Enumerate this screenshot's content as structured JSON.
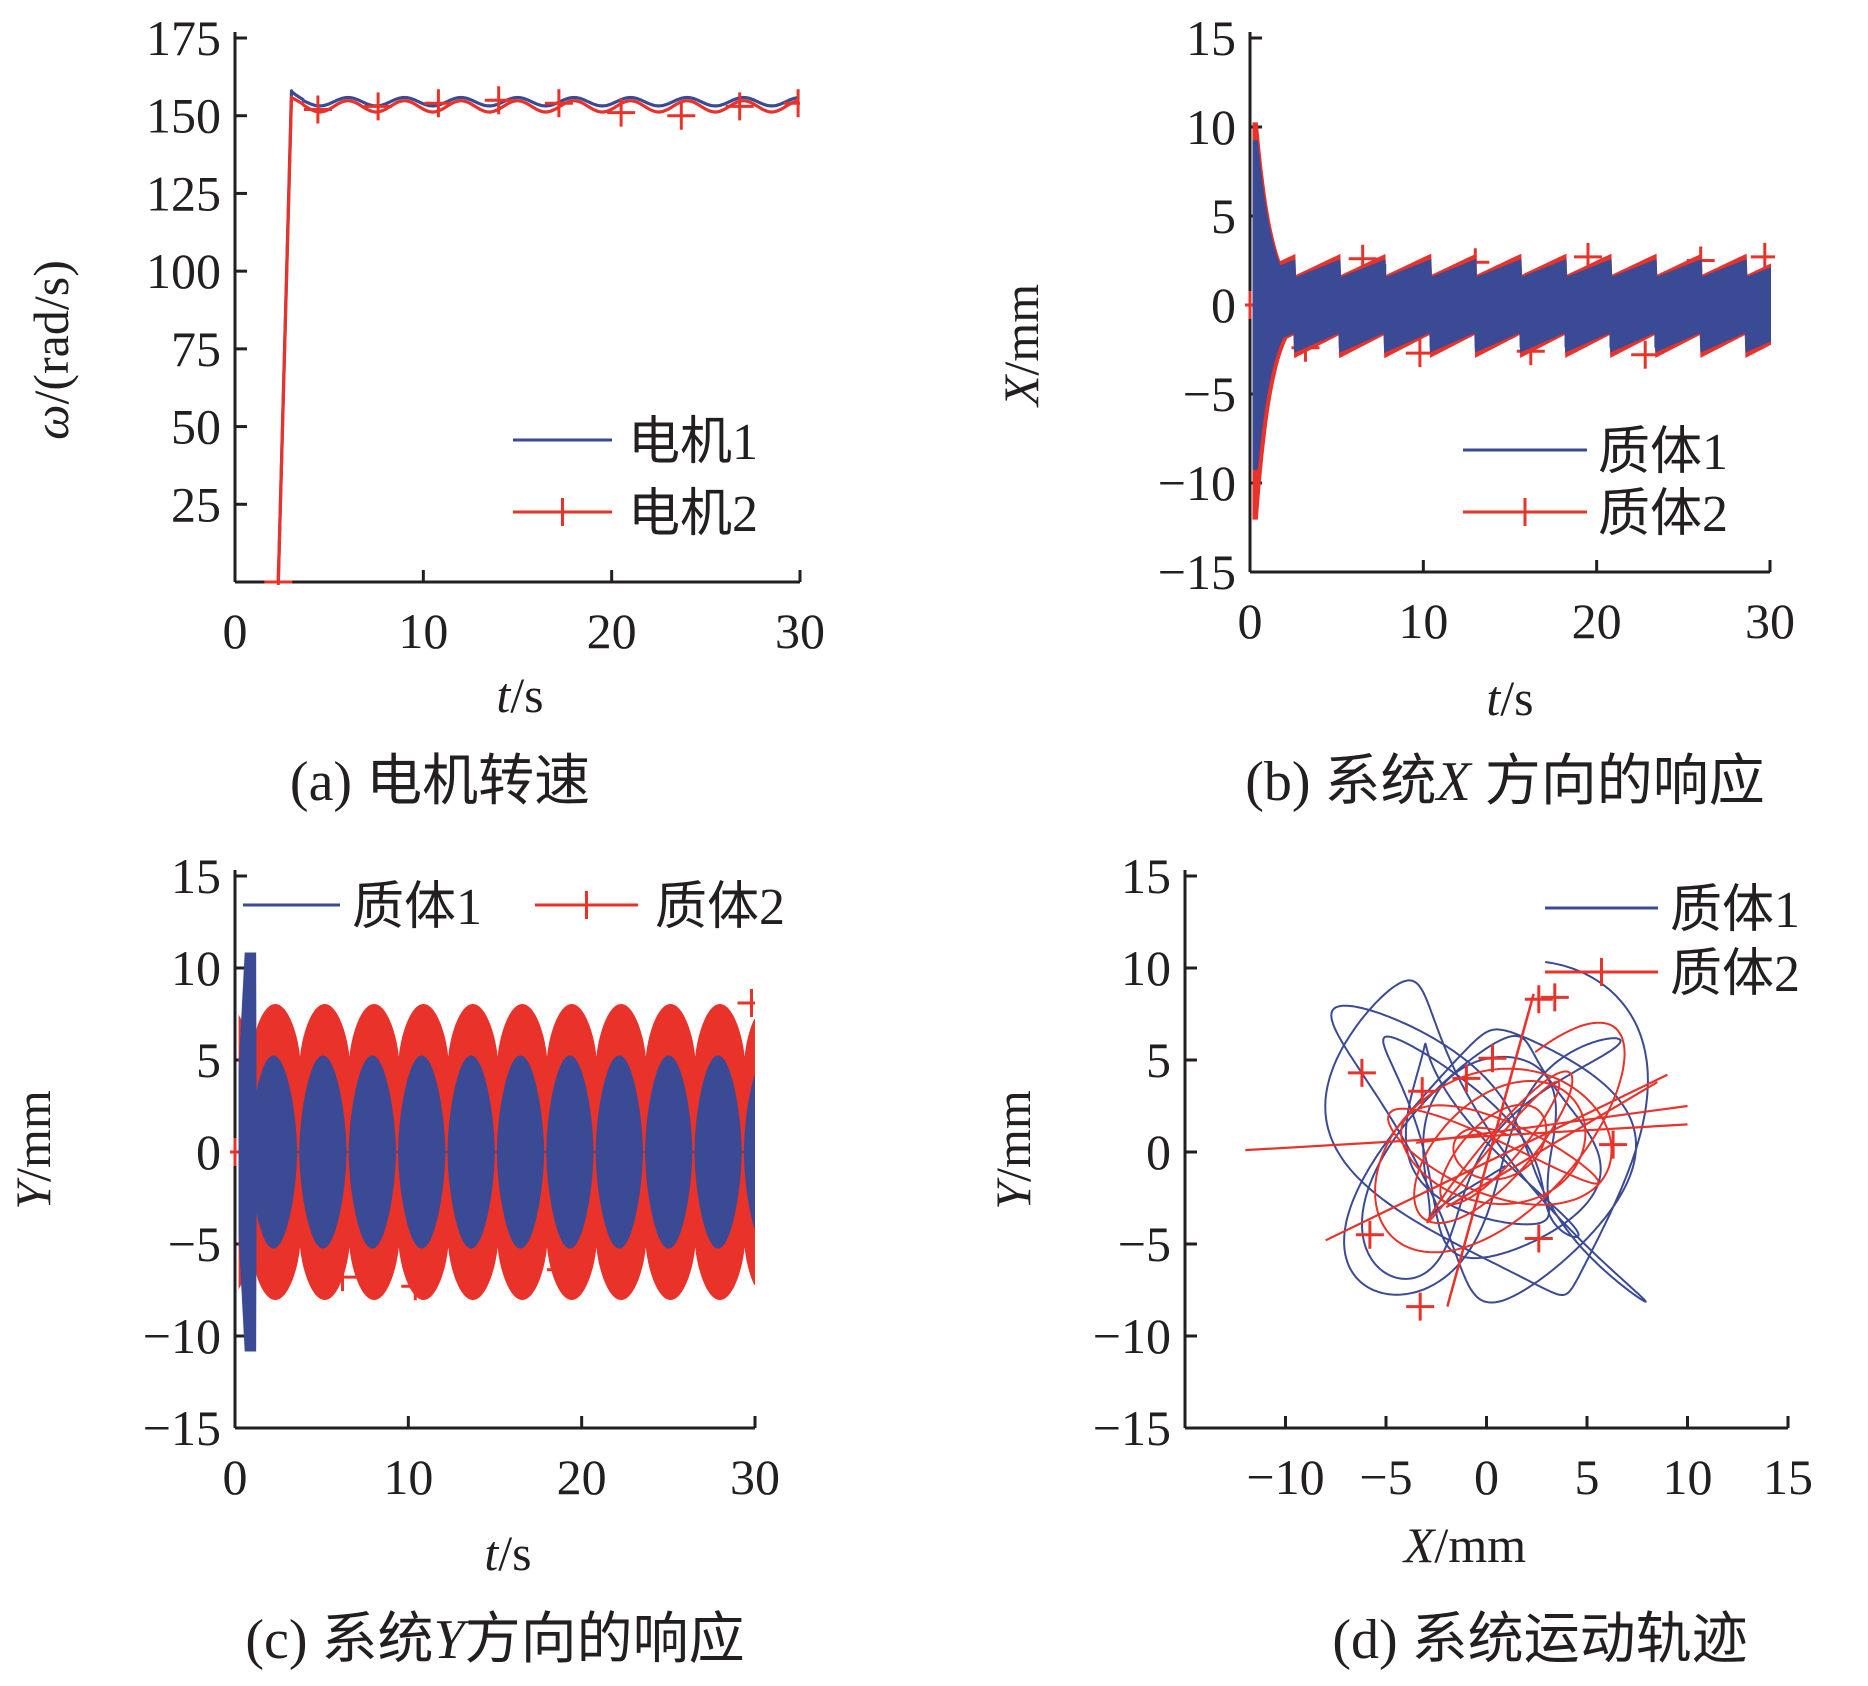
{
  "colors": {
    "blue": "#3b4a94",
    "red": "#e8322a",
    "axis": "#231f20"
  },
  "panels": [
    {
      "id": "a",
      "caption": "(a)  电机转速",
      "xlabel": {
        "italic": "t",
        "rest": "/s"
      },
      "ylabel": {
        "italic": "ω",
        "rest": "/(rad/s)"
      },
      "legend": [
        "电机1",
        "电机2"
      ]
    },
    {
      "id": "b",
      "caption": {
        "prefix": "(b)  系统",
        "italic": "X",
        "suffix": " 方向的响应"
      },
      "xlabel": {
        "italic": "t",
        "rest": "/s"
      },
      "ylabel": {
        "italic": "X",
        "rest": "/mm"
      },
      "legend": [
        "质体1",
        "质体2"
      ]
    },
    {
      "id": "c",
      "caption": {
        "prefix": "(c)  系统",
        "italic": "Y",
        "suffix": "方向的响应"
      },
      "xlabel": {
        "italic": "t",
        "rest": "/s"
      },
      "ylabel": {
        "italic": "Y",
        "rest": "/mm"
      },
      "legend": [
        "质体1",
        "质体2"
      ]
    },
    {
      "id": "d",
      "caption": "(d)  系统运动轨迹",
      "xlabel": {
        "italic": "X",
        "rest": "/mm"
      },
      "ylabel": {
        "italic": "Y",
        "rest": "/mm"
      },
      "legend": [
        "质体1",
        "质体2"
      ]
    }
  ],
  "chart_data": [
    {
      "panel": "a",
      "type": "line",
      "xlim": [
        0,
        30
      ],
      "ylim": [
        0,
        175
      ],
      "xticks": [
        "0",
        "10",
        "20",
        "30"
      ],
      "yticks": [
        "25",
        "50",
        "75",
        "100",
        "125",
        "150",
        "175"
      ],
      "series": [
        {
          "name": "电机1",
          "color": "blue",
          "marker": "none",
          "x": [
            2.3,
            3.0,
            4.5,
            6.0,
            7.5,
            9.0,
            10.5,
            12.0,
            13.5,
            15.0,
            16.5,
            18.0,
            19.5,
            21.0,
            22.5,
            24.0,
            25.5,
            27.0,
            28.5,
            30.0
          ],
          "y": [
            0,
            158,
            153,
            156,
            153,
            156,
            153,
            156,
            153,
            156,
            153,
            156,
            153,
            156,
            153,
            156,
            153,
            156,
            153,
            155
          ]
        },
        {
          "name": "电机2",
          "color": "red",
          "marker": "plus",
          "x": [
            2.3,
            3.0,
            4.5,
            6.0,
            7.5,
            9.0,
            10.5,
            12.0,
            13.5,
            15.0,
            16.5,
            18.0,
            19.5,
            21.0,
            22.5,
            24.0,
            25.5,
            27.0,
            28.5,
            30.0
          ],
          "y": [
            0,
            156,
            151,
            155,
            150,
            155,
            150,
            155,
            150,
            155,
            150,
            155,
            150,
            155,
            150,
            155,
            150,
            155,
            150,
            152
          ],
          "marker_x": [
            2.3,
            4.4,
            7.6,
            10.8,
            14.0,
            17.2,
            20.5,
            23.7,
            26.8,
            29.9
          ],
          "marker_y": [
            0,
            152,
            153,
            154,
            155,
            154,
            151,
            150,
            153,
            154
          ]
        }
      ]
    },
    {
      "panel": "b",
      "type": "line",
      "xlim": [
        0,
        30
      ],
      "ylim": [
        -15,
        15
      ],
      "xticks": [
        "0",
        "10",
        "20",
        "30"
      ],
      "yticks": [
        "−15",
        "−10",
        "−5",
        "0",
        "5",
        "10",
        "15"
      ],
      "series": [
        {
          "name": "质体1",
          "color": "blue",
          "marker": "none",
          "description_values": {
            "transient_peak": 9.2,
            "transient_min": -9.2,
            "steady_upper": [
              1.5,
              2.5
            ],
            "steady_lower": [
              -1.5,
              -2.6
            ],
            "period_s": 2.6
          }
        },
        {
          "name": "质体2",
          "color": "red",
          "marker": "plus",
          "description_values": {
            "transient_peak": 10.2,
            "transient_min": -12.0,
            "steady_upper": [
              1.6,
              2.8
            ],
            "steady_lower": [
              -1.6,
              -2.9
            ],
            "period_s": 2.6
          },
          "marker_x": [
            0.0,
            3.2,
            6.5,
            9.8,
            13.0,
            16.2,
            19.5,
            22.8,
            26.0,
            29.7
          ],
          "marker_y": [
            0,
            -2.4,
            2.6,
            -2.7,
            2.4,
            -2.6,
            2.7,
            -2.8,
            2.5,
            2.7
          ]
        }
      ]
    },
    {
      "panel": "c",
      "type": "line",
      "xlim": [
        0,
        30
      ],
      "ylim": [
        -15,
        15
      ],
      "xticks": [
        "0",
        "10",
        "20",
        "30"
      ],
      "yticks": [
        "−15",
        "−10",
        "−5",
        "0",
        "5",
        "10",
        "15"
      ],
      "series": [
        {
          "name": "质体1",
          "color": "blue",
          "marker": "none",
          "description_values": {
            "transient_peak": 10.8,
            "transient_min": -10.0,
            "steady_amplitude": 5.2,
            "beat_period_s": 2.85
          }
        },
        {
          "name": "质体2",
          "color": "red",
          "marker": "plus",
          "description_values": {
            "transient_peak": 8.3,
            "steady_amplitude": 8.0,
            "beat_period_s": 2.85
          },
          "marker_x": [
            0.0,
            6.2,
            10.4,
            18.8,
            19.8,
            29.8
          ],
          "marker_y": [
            0,
            -6.8,
            -7.3,
            -6.4,
            5.2,
            8.1
          ]
        }
      ]
    },
    {
      "panel": "d",
      "type": "scatter",
      "xlim": [
        -15,
        15
      ],
      "ylim": [
        -15,
        15
      ],
      "xticks": [
        "−10",
        "−5",
        "0",
        "5",
        "10",
        "15"
      ],
      "yticks": [
        "−15",
        "−10",
        "−5",
        "0",
        "5",
        "10",
        "15"
      ],
      "series": [
        {
          "name": "质体1",
          "color": "blue",
          "marker": "none",
          "description_values": {
            "x_range": [
              -9,
              9
            ],
            "y_range": [
              -10,
              10.8
            ]
          }
        },
        {
          "name": "质体2",
          "color": "red",
          "marker": "plus",
          "description_values": {
            "x_range": [
              -12,
              10
            ],
            "y_range": [
              -8.5,
              8.5
            ],
            "core_slope": 2.4
          }
        }
      ]
    }
  ]
}
